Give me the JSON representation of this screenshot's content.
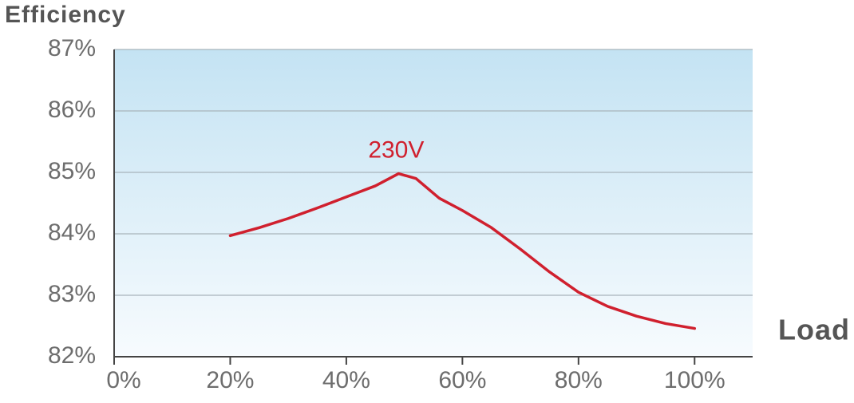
{
  "chart_data": {
    "type": "line",
    "y_label": "Efficiency",
    "x_label": "Load",
    "x": [
      20,
      25,
      30,
      35,
      40,
      45,
      49,
      52,
      56,
      60,
      65,
      70,
      75,
      80,
      85,
      90,
      95,
      100
    ],
    "series": [
      {
        "name": "230V",
        "color": "#d0202e",
        "values": [
          83.97,
          84.1,
          84.25,
          84.42,
          84.6,
          84.78,
          84.98,
          84.9,
          84.58,
          84.38,
          84.1,
          83.75,
          83.38,
          83.05,
          82.82,
          82.66,
          82.54,
          82.46
        ]
      }
    ],
    "xlim": [
      0,
      110
    ],
    "xticks": [
      {
        "value": 0,
        "label": "0%"
      },
      {
        "value": 20,
        "label": "20%"
      },
      {
        "value": 40,
        "label": "40%"
      },
      {
        "value": 60,
        "label": "60%"
      },
      {
        "value": 80,
        "label": "80%"
      },
      {
        "value": 100,
        "label": "100%"
      }
    ],
    "ylim": [
      82,
      87
    ],
    "yticks": [
      {
        "value": 82,
        "label": "82%"
      },
      {
        "value": 83,
        "label": "83%"
      },
      {
        "value": 84,
        "label": "84%"
      },
      {
        "value": 85,
        "label": "85%"
      },
      {
        "value": 86,
        "label": "86%"
      },
      {
        "value": 87,
        "label": "87%"
      }
    ],
    "grid": true
  }
}
